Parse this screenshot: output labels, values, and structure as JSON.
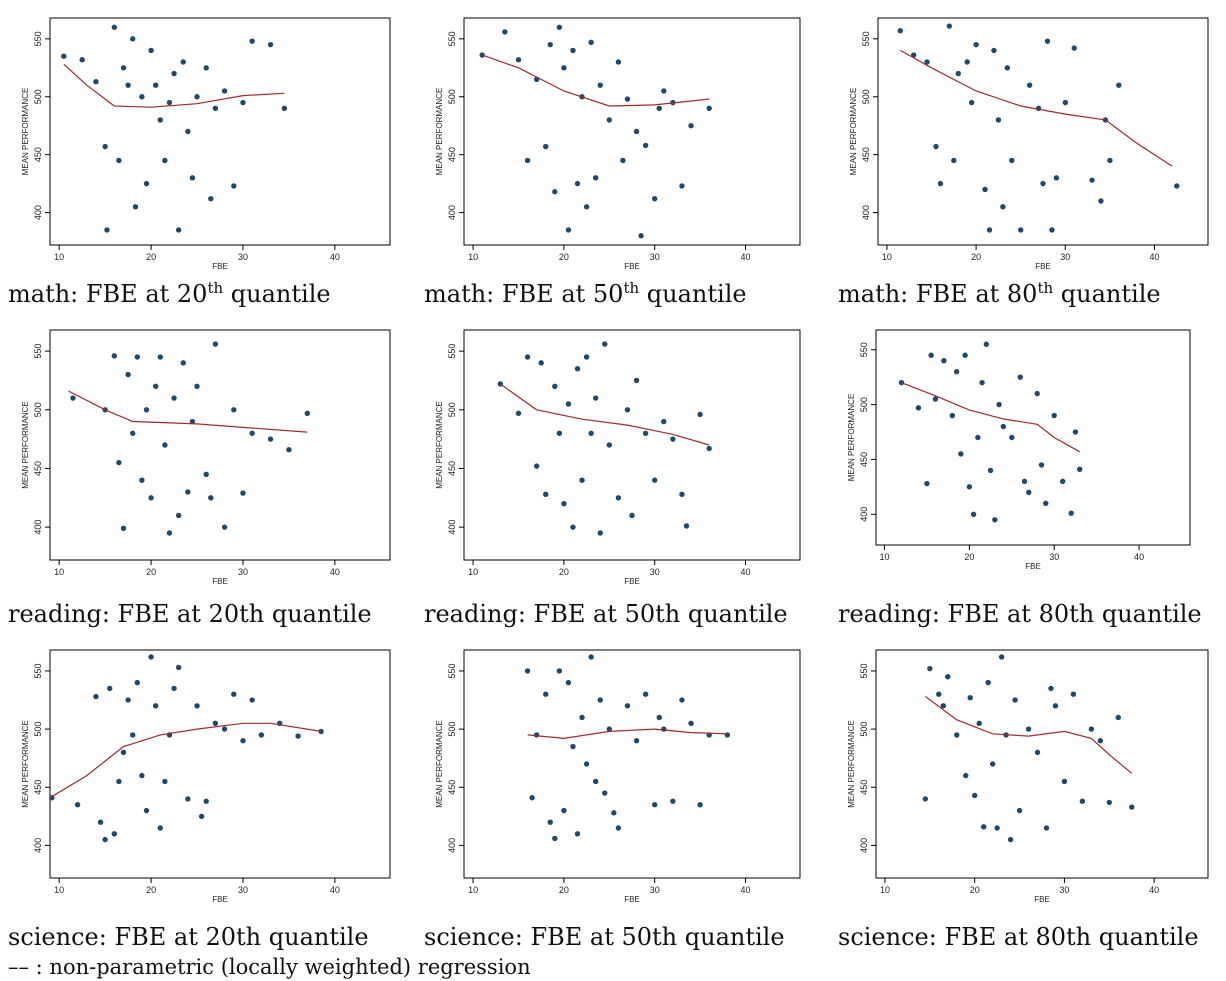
{
  "chart_data": [
    {
      "type": "scatter",
      "caption": "math: FBE at 20",
      "caption_sup": "th",
      "caption_end": " quantile",
      "xlabel": "FBE",
      "ylabel": "MEAN PERFORMANCE",
      "xlim": [
        9,
        46
      ],
      "ylim": [
        372,
        568
      ],
      "xticks": [
        10,
        20,
        30,
        40
      ],
      "yticks": [
        400,
        450,
        500,
        550
      ],
      "points": {
        "color": "#1c4a6e",
        "x": [
          10.5,
          12.5,
          14,
          15,
          15.2,
          16,
          16.5,
          17,
          17.5,
          18,
          18.3,
          19,
          19.5,
          20,
          20.5,
          21,
          21.5,
          22,
          22.5,
          23,
          23.5,
          24,
          24.5,
          25,
          26,
          26.5,
          27,
          28,
          29,
          30,
          31,
          33,
          34.5
        ],
        "y": [
          535,
          532,
          513,
          457,
          385,
          560,
          445,
          525,
          510,
          550,
          405,
          500,
          425,
          540,
          510,
          480,
          445,
          495,
          520,
          385,
          530,
          470,
          430,
          500,
          525,
          412,
          490,
          505,
          423,
          495,
          548,
          545,
          490
        ]
      },
      "fit": {
        "color": "#9e2a2b",
        "x": [
          10.5,
          13,
          16,
          20,
          25,
          30,
          34.5
        ],
        "y": [
          528,
          510,
          492,
          491,
          494,
          501,
          503
        ]
      }
    },
    {
      "type": "scatter",
      "caption": "math: FBE at 50",
      "caption_sup": "th",
      "caption_end": " quantile",
      "xlabel": "FBE",
      "ylabel": "MEAN PERFORMANCE",
      "xlim": [
        9,
        46
      ],
      "ylim": [
        372,
        568
      ],
      "xticks": [
        10,
        20,
        30,
        40
      ],
      "yticks": [
        400,
        450,
        500,
        550
      ],
      "points": {
        "color": "#1c4a6e",
        "x": [
          11,
          13.5,
          15,
          16,
          17,
          18,
          18.5,
          19,
          19.5,
          20,
          20.5,
          21,
          21.5,
          22,
          22.5,
          23,
          23.5,
          24,
          25,
          26,
          26.5,
          27,
          28,
          28.5,
          29,
          30,
          30.5,
          31,
          32,
          33,
          34,
          36
        ],
        "y": [
          536,
          556,
          532,
          445,
          515,
          457,
          545,
          418,
          560,
          525,
          385,
          540,
          425,
          500,
          405,
          547,
          430,
          510,
          480,
          530,
          445,
          498,
          470,
          380,
          458,
          412,
          490,
          505,
          495,
          423,
          475,
          490
        ]
      },
      "fit": {
        "color": "#9e2a2b",
        "x": [
          11,
          15,
          20,
          25,
          30,
          36
        ],
        "y": [
          536,
          525,
          505,
          492,
          493,
          498
        ]
      }
    },
    {
      "type": "scatter",
      "caption": "math: FBE at 80",
      "caption_sup": "th",
      "caption_end": " quantile",
      "xlabel": "FBE",
      "ylabel": "MEAN PERFORMANCE",
      "xlim": [
        9,
        46
      ],
      "ylim": [
        372,
        568
      ],
      "xticks": [
        10,
        20,
        30,
        40
      ],
      "yticks": [
        400,
        450,
        500,
        550
      ],
      "points": {
        "color": "#1c4a6e",
        "x": [
          11.5,
          13,
          14.5,
          15.5,
          16,
          17,
          17.5,
          18,
          19,
          19.5,
          20,
          21,
          21.5,
          22,
          22.5,
          23,
          23.5,
          24,
          25,
          26,
          27,
          27.5,
          28,
          28.5,
          29,
          30,
          31,
          33,
          34,
          34.5,
          35,
          36,
          42.5
        ],
        "y": [
          557,
          536,
          530,
          457,
          425,
          561,
          445,
          520,
          530,
          495,
          545,
          420,
          385,
          540,
          480,
          405,
          525,
          445,
          385,
          510,
          490,
          425,
          548,
          385,
          430,
          495,
          542,
          428,
          410,
          480,
          445,
          510,
          423
        ]
      },
      "fit": {
        "color": "#9e2a2b",
        "x": [
          11.5,
          15,
          20,
          25,
          30,
          34.5,
          38,
          42
        ],
        "y": [
          540,
          525,
          505,
          492,
          485,
          480,
          460,
          440
        ]
      }
    },
    {
      "type": "scatter",
      "caption": "reading: FBE at 20th quantile",
      "xlabel": "FBE",
      "ylabel": "MEAN PERFORMANCE",
      "xlim": [
        9,
        46
      ],
      "ylim": [
        372,
        568
      ],
      "xticks": [
        10,
        20,
        30,
        40
      ],
      "yticks": [
        400,
        450,
        500,
        550
      ],
      "points": {
        "color": "#1c4a6e",
        "x": [
          11.5,
          15,
          16,
          16.5,
          17,
          17.5,
          18,
          18.5,
          19,
          19.5,
          20,
          20.5,
          21,
          21.5,
          22,
          22.5,
          23,
          23.5,
          24,
          24.5,
          25,
          26,
          26.5,
          27,
          28,
          29,
          30,
          31,
          33,
          35,
          37
        ],
        "y": [
          510,
          500,
          546,
          455,
          399,
          530,
          480,
          545,
          440,
          500,
          425,
          520,
          545,
          470,
          395,
          510,
          410,
          540,
          430,
          490,
          520,
          445,
          425,
          556,
          400,
          500,
          429,
          480,
          475,
          466,
          497
        ]
      },
      "fit": {
        "color": "#9e2a2b",
        "x": [
          11,
          15,
          18,
          25,
          30,
          37
        ],
        "y": [
          516,
          500,
          490,
          488,
          485,
          481
        ]
      }
    },
    {
      "type": "scatter",
      "caption": "reading: FBE at 50th quantile",
      "xlabel": "FBE",
      "ylabel": "MEAN PERFORMANCE",
      "xlim": [
        9,
        46
      ],
      "ylim": [
        372,
        568
      ],
      "xticks": [
        10,
        20,
        30,
        40
      ],
      "yticks": [
        400,
        450,
        500,
        550
      ],
      "points": {
        "color": "#1c4a6e",
        "x": [
          13,
          15,
          16,
          17,
          17.5,
          18,
          19,
          19.5,
          20,
          20.5,
          21,
          21.5,
          22,
          22.5,
          23,
          23.5,
          24,
          24.5,
          25,
          26,
          27,
          27.5,
          28,
          29,
          30,
          31,
          32,
          33,
          33.5,
          35,
          36
        ],
        "y": [
          522,
          497,
          545,
          452,
          540,
          428,
          520,
          480,
          420,
          505,
          400,
          535,
          440,
          545,
          480,
          510,
          395,
          556,
          470,
          425,
          500,
          410,
          525,
          480,
          440,
          490,
          475,
          428,
          401,
          496,
          467
        ]
      },
      "fit": {
        "color": "#9e2a2b",
        "x": [
          13,
          17,
          22,
          27,
          32,
          36
        ],
        "y": [
          522,
          500,
          492,
          487,
          479,
          470
        ]
      }
    },
    {
      "type": "scatter",
      "caption": "reading: FBE at 80th quantile",
      "xlabel": "FBE",
      "ylabel": "MEAN PERFORMANCE",
      "xlim": [
        9,
        46
      ],
      "ylim": [
        372,
        568
      ],
      "xticks": [
        10,
        20,
        30,
        40
      ],
      "yticks": [
        400,
        450,
        500,
        550
      ],
      "points": {
        "color": "#1c4a6e",
        "x": [
          12,
          14,
          15,
          15.5,
          16,
          17,
          18,
          18.5,
          19,
          19.5,
          20,
          20.5,
          21,
          21.5,
          22,
          22.5,
          23,
          23.5,
          24,
          25,
          26,
          26.5,
          27,
          28,
          28.5,
          29,
          30,
          31,
          32,
          32.5,
          33
        ],
        "y": [
          520,
          497,
          428,
          545,
          505,
          540,
          490,
          530,
          455,
          545,
          425,
          400,
          470,
          520,
          555,
          440,
          395,
          500,
          480,
          470,
          525,
          430,
          420,
          510,
          445,
          410,
          490,
          430,
          401,
          475,
          441
        ]
      },
      "fit": {
        "color": "#9e2a2b",
        "x": [
          12,
          16,
          20,
          24,
          28,
          30,
          33
        ],
        "y": [
          520,
          508,
          495,
          487,
          482,
          470,
          457
        ]
      }
    },
    {
      "type": "scatter",
      "caption": "science: FBE at 20th quantile",
      "xlabel": "FBE",
      "ylabel": "MEAN PERFORMANCE",
      "xlim": [
        9,
        46
      ],
      "ylim": [
        372,
        568
      ],
      "xticks": [
        10,
        20,
        30,
        40
      ],
      "yticks": [
        400,
        450,
        500,
        550
      ],
      "points": {
        "color": "#1c4a6e",
        "x": [
          9.2,
          12,
          14,
          14.5,
          15,
          15.5,
          16,
          16.5,
          17,
          17.5,
          18,
          18.5,
          19,
          19.5,
          20,
          20.5,
          21,
          21.5,
          22,
          22.5,
          23,
          24,
          25,
          25.5,
          26,
          27,
          28,
          29,
          30,
          31,
          32,
          34,
          36,
          38.5
        ],
        "y": [
          441,
          435,
          528,
          420,
          405,
          535,
          410,
          455,
          480,
          525,
          495,
          540,
          460,
          430,
          562,
          520,
          415,
          455,
          495,
          535,
          553,
          440,
          520,
          425,
          438,
          505,
          500,
          530,
          490,
          525,
          495,
          505,
          494,
          498
        ]
      },
      "fit": {
        "color": "#9e2a2b",
        "x": [
          9,
          13,
          17,
          21,
          25,
          30,
          33,
          38.5
        ],
        "y": [
          441,
          460,
          485,
          495,
          500,
          505,
          505,
          498
        ]
      }
    },
    {
      "type": "scatter",
      "caption": "science: FBE at 50th quantile",
      "xlabel": "FBE",
      "ylabel": "MEAN PERFORMANCE",
      "xlim": [
        9,
        46
      ],
      "ylim": [
        372,
        568
      ],
      "xticks": [
        10,
        20,
        30,
        40
      ],
      "yticks": [
        400,
        450,
        500,
        550
      ],
      "points": {
        "color": "#1c4a6e",
        "x": [
          16,
          16.5,
          17,
          18,
          18.5,
          19,
          19.5,
          20,
          20.5,
          21,
          21.5,
          22,
          22.5,
          23,
          23.5,
          24,
          24.5,
          25,
          25.5,
          26,
          27,
          28,
          29,
          30,
          30.5,
          31,
          32,
          33,
          34,
          35,
          36,
          38
        ],
        "y": [
          550,
          441,
          495,
          530,
          420,
          406,
          550,
          430,
          540,
          485,
          410,
          510,
          470,
          562,
          455,
          525,
          445,
          500,
          428,
          415,
          520,
          490,
          530,
          435,
          510,
          500,
          438,
          525,
          505,
          435,
          495,
          495
        ]
      },
      "fit": {
        "color": "#9e2a2b",
        "x": [
          16,
          20,
          25,
          30,
          34,
          38
        ],
        "y": [
          495,
          492,
          498,
          500,
          497,
          496
        ]
      }
    },
    {
      "type": "scatter",
      "caption": "science: FBE at 80th quantile",
      "xlabel": "FBE",
      "ylabel": "MEAN PERFORMANCE",
      "xlim": [
        9,
        46
      ],
      "ylim": [
        372,
        568
      ],
      "xticks": [
        10,
        20,
        30,
        40
      ],
      "yticks": [
        400,
        450,
        500,
        550
      ],
      "points": {
        "color": "#1c4a6e",
        "x": [
          14.5,
          15,
          16,
          16.5,
          17,
          18,
          19,
          19.5,
          20,
          20.5,
          21,
          21.5,
          22,
          22.5,
          23,
          23.5,
          24,
          24.5,
          25,
          26,
          27,
          28,
          28.5,
          29,
          30,
          31,
          32,
          33,
          34,
          35,
          36,
          37.5
        ],
        "y": [
          440,
          552,
          530,
          520,
          545,
          495,
          460,
          527,
          443,
          505,
          416,
          540,
          470,
          415,
          562,
          495,
          405,
          525,
          430,
          500,
          480,
          415,
          535,
          520,
          455,
          530,
          438,
          500,
          490,
          437,
          510,
          433
        ]
      },
      "fit": {
        "color": "#9e2a2b",
        "x": [
          14.5,
          18,
          22,
          26,
          30,
          33,
          35,
          37.5
        ],
        "y": [
          528,
          508,
          496,
          494,
          498,
          492,
          478,
          462
        ]
      }
    }
  ],
  "footnote": "–– : non-parametric (locally weighted) regression"
}
